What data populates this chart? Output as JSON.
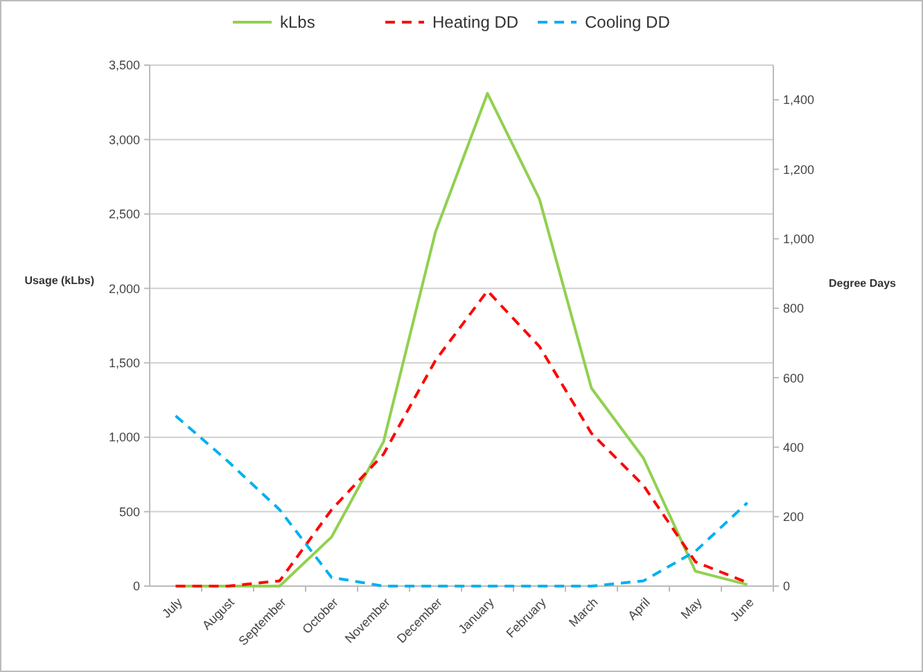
{
  "chart_data": {
    "type": "line",
    "categories": [
      "July",
      "August",
      "September",
      "October",
      "November",
      "December",
      "January",
      "February",
      "March",
      "April",
      "May",
      "June"
    ],
    "series": [
      {
        "name": "kLbs",
        "color": "#92d050",
        "line_style": "solid",
        "values": [
          0,
          0,
          0,
          330,
          970,
          2380,
          3310,
          2600,
          1330,
          860,
          100,
          10
        ]
      },
      {
        "name": "Heating DD",
        "color": "#ff0000",
        "line_style": "dashed",
        "axis": "y2",
        "values": [
          0,
          0,
          15,
          220,
          380,
          650,
          850,
          690,
          440,
          290,
          70,
          10
        ]
      },
      {
        "name": "Cooling DD",
        "color": "#00b0f0",
        "line_style": "dashed",
        "axis": "y2",
        "values": [
          490,
          360,
          220,
          25,
          0,
          0,
          0,
          0,
          0,
          15,
          100,
          240
        ]
      }
    ],
    "ylabel": "Usage (kLbs)",
    "y2label": "Degree Days",
    "ylim": [
      0,
      3500
    ],
    "yticks": [
      {
        "value": 0,
        "label": "0"
      },
      {
        "value": 500,
        "label": "500"
      },
      {
        "value": 1000,
        "label": "1,000"
      },
      {
        "value": 1500,
        "label": "1,500"
      },
      {
        "value": 2000,
        "label": "2,000"
      },
      {
        "value": 2500,
        "label": "2,500"
      },
      {
        "value": 3000,
        "label": "3,000"
      },
      {
        "value": 3500,
        "label": "3,500"
      }
    ],
    "y2lim": [
      0,
      1500
    ],
    "y2ticks": [
      {
        "value": 0,
        "label": "0"
      },
      {
        "value": 200,
        "label": "200"
      },
      {
        "value": 400,
        "label": "400"
      },
      {
        "value": 600,
        "label": "600"
      },
      {
        "value": 800,
        "label": "800"
      },
      {
        "value": 1000,
        "label": "1,000"
      },
      {
        "value": 1200,
        "label": "1,200"
      },
      {
        "value": 1400,
        "label": "1,400"
      }
    ],
    "grid": "y",
    "legend": "top",
    "marker": "none"
  }
}
